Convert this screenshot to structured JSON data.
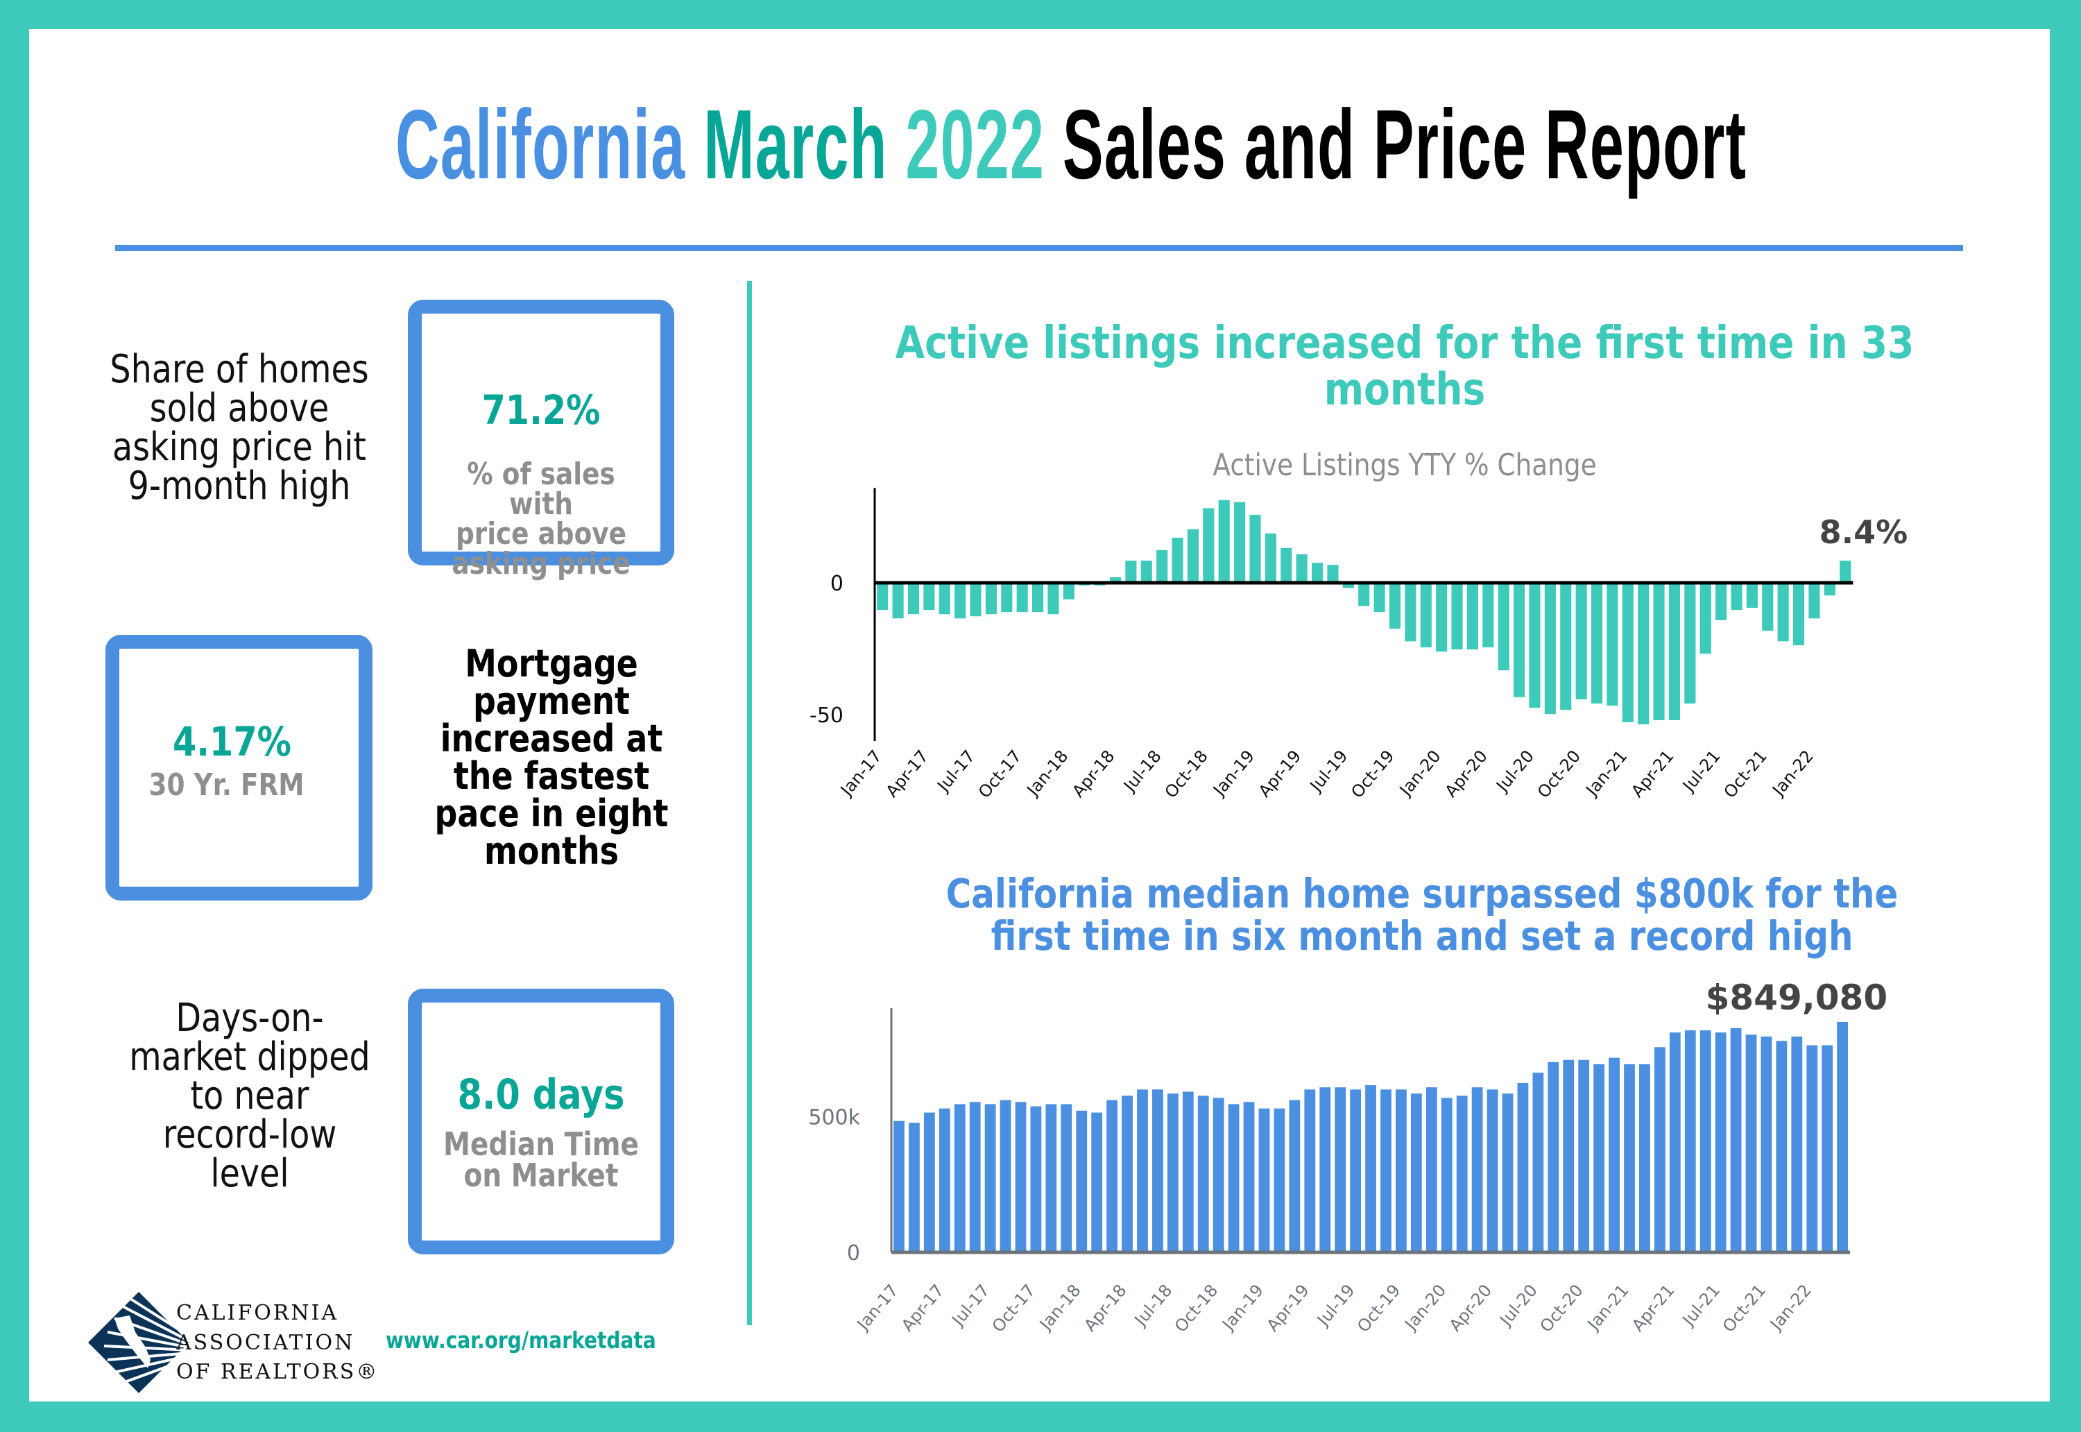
{
  "title": {
    "part1": "California",
    "part2": "March",
    "part3": "2022",
    "part4": "Sales and Price Report"
  },
  "colors": {
    "border": "#3ecabb",
    "blue": "#4a8fe0",
    "teal_dark": "#08a696",
    "teal_light": "#3ecabb",
    "gray_text": "#8e8e8e",
    "label_dark": "#444444"
  },
  "stats": [
    {
      "description": [
        "Share of homes",
        "sold above",
        "asking price hit",
        "9-month high"
      ],
      "value": "71.2%",
      "label": [
        "% of sales with",
        "price above",
        "asking price"
      ]
    },
    {
      "description": [
        "Mortgage",
        "payment",
        "increased at",
        "the fastest",
        "pace in eight",
        "months"
      ],
      "value": "4.17%",
      "label": [
        "30 Yr. FRM"
      ]
    },
    {
      "description": [
        "Days-on-",
        "market dipped",
        "to near",
        "record-low",
        "level"
      ],
      "value": "8.0 days",
      "label": [
        "Median Time",
        "on Market"
      ]
    }
  ],
  "footer": {
    "logo_lines": [
      "CALIFORNIA",
      "ASSOCIATION",
      "OF REALTORS®"
    ],
    "url": "www.car.org/marketdata"
  },
  "chart_data": [
    {
      "type": "bar",
      "title": "Active listings increased for the first time in 33 months",
      "title_lines": [
        "Active listings increased for the first time in 33",
        "months"
      ],
      "subtitle": "Active Listings YTY % Change",
      "xlabel": "",
      "ylabel": "",
      "ylim": [
        -60,
        36
      ],
      "yticks": [
        0,
        -50
      ],
      "ytick_labels": [
        "0",
        "-50"
      ],
      "grid": false,
      "tick_labels": [
        "Jan-17",
        "Apr-17",
        "Jul-17",
        "Oct-17",
        "Jan-18",
        "Apr-18",
        "Jul-18",
        "Oct-18",
        "Jan-19",
        "Apr-19",
        "Jul-19",
        "Oct-19",
        "Jan-20",
        "Apr-20",
        "Jul-20",
        "Oct-20",
        "Jan-21",
        "Apr-21",
        "Jul-21",
        "Oct-21",
        "Jan-22"
      ],
      "categories": [
        "Jan-17",
        "Feb-17",
        "Mar-17",
        "Apr-17",
        "May-17",
        "Jun-17",
        "Jul-17",
        "Aug-17",
        "Sep-17",
        "Oct-17",
        "Nov-17",
        "Dec-17",
        "Jan-18",
        "Feb-18",
        "Mar-18",
        "Apr-18",
        "May-18",
        "Jun-18",
        "Jul-18",
        "Aug-18",
        "Sep-18",
        "Oct-18",
        "Nov-18",
        "Dec-18",
        "Jan-19",
        "Feb-19",
        "Mar-19",
        "Apr-19",
        "May-19",
        "Jun-19",
        "Jul-19",
        "Aug-19",
        "Sep-19",
        "Oct-19",
        "Nov-19",
        "Dec-19",
        "Jan-20",
        "Feb-20",
        "Mar-20",
        "Apr-20",
        "May-20",
        "Jun-20",
        "Jul-20",
        "Aug-20",
        "Sep-20",
        "Oct-20",
        "Nov-20",
        "Dec-20",
        "Jan-21",
        "Feb-21",
        "Mar-21",
        "Apr-21",
        "May-21",
        "Jun-21",
        "Jul-21",
        "Aug-21",
        "Sep-21",
        "Oct-21",
        "Nov-21",
        "Dec-21",
        "Jan-22",
        "Feb-22",
        "Mar-22"
      ],
      "values": [
        -10.3,
        -13.5,
        -11.9,
        -10.3,
        -11.9,
        -13.5,
        -12.7,
        -11.9,
        -11.1,
        -11.1,
        -11.1,
        -11.9,
        -6.3,
        -1.0,
        -1.0,
        2.1,
        8.4,
        8.4,
        12.4,
        17.1,
        20.3,
        28.3,
        31.4,
        30.6,
        25.8,
        18.7,
        13.2,
        10.8,
        7.6,
        6.8,
        -2.0,
        -8.8,
        -11.1,
        -17.4,
        -22.2,
        -24.5,
        -26.1,
        -25.3,
        -25.3,
        -24.5,
        -33.2,
        -43.4,
        -47.4,
        -49.8,
        -48.2,
        -44.2,
        -45.8,
        -46.6,
        -52.9,
        -53.7,
        -52.1,
        -52.1,
        -45.8,
        -26.9,
        -14.2,
        -10.3,
        -9.5,
        -18.2,
        -22.2,
        -23.7,
        -13.5,
        -4.8,
        8.4
      ],
      "annotation": {
        "text": "8.4%",
        "target": "Mar-22"
      },
      "bar_color": "#3ecabb"
    },
    {
      "type": "bar",
      "title": "California median home surpassed $800k for the first time in six month and set a record high",
      "title_lines": [
        "California median home surpassed $800k for the",
        "first time in six month and set a record high"
      ],
      "xlabel": "",
      "ylabel": "",
      "ylim": [
        0,
        900000
      ],
      "yticks": [
        0,
        500000
      ],
      "ytick_labels": [
        "0",
        "500k"
      ],
      "grid": false,
      "tick_labels": [
        "Jan-17",
        "Apr-17",
        "Jul-17",
        "Oct-17",
        "Jan-18",
        "Apr-18",
        "Jul-18",
        "Oct-18",
        "Jan-19",
        "Apr-19",
        "Jul-19",
        "Oct-19",
        "Jan-20",
        "Apr-20",
        "Jul-20",
        "Oct-20",
        "Jan-21",
        "Apr-21",
        "Jul-21",
        "Oct-21",
        "Jan-22"
      ],
      "categories": [
        "Jan-17",
        "Feb-17",
        "Mar-17",
        "Apr-17",
        "May-17",
        "Jun-17",
        "Jul-17",
        "Aug-17",
        "Sep-17",
        "Oct-17",
        "Nov-17",
        "Dec-17",
        "Jan-18",
        "Feb-18",
        "Mar-18",
        "Apr-18",
        "May-18",
        "Jun-18",
        "Jul-18",
        "Aug-18",
        "Sep-18",
        "Oct-18",
        "Nov-18",
        "Dec-18",
        "Jan-19",
        "Feb-19",
        "Mar-19",
        "Apr-19",
        "May-19",
        "Jun-19",
        "Jul-19",
        "Aug-19",
        "Sep-19",
        "Oct-19",
        "Nov-19",
        "Dec-19",
        "Jan-20",
        "Feb-20",
        "Mar-20",
        "Apr-20",
        "May-20",
        "Jun-20",
        "Jul-20",
        "Aug-20",
        "Sep-20",
        "Oct-20",
        "Nov-20",
        "Dec-20",
        "Jan-21",
        "Feb-21",
        "Mar-21",
        "Apr-21",
        "May-21",
        "Jun-21",
        "Jul-21",
        "Aug-21",
        "Sep-21",
        "Oct-21",
        "Nov-21",
        "Dec-21",
        "Jan-22",
        "Feb-22",
        "Mar-22"
      ],
      "values": [
        484000,
        477000,
        515000,
        530000,
        546000,
        554000,
        546000,
        561000,
        554000,
        538000,
        546000,
        546000,
        522000,
        515000,
        561000,
        577000,
        600000,
        600000,
        585000,
        592000,
        577000,
        569000,
        546000,
        554000,
        530000,
        530000,
        561000,
        600000,
        608000,
        608000,
        600000,
        616000,
        600000,
        600000,
        585000,
        608000,
        569000,
        577000,
        608000,
        600000,
        585000,
        624000,
        662000,
        701000,
        709000,
        709000,
        693000,
        717000,
        693000,
        693000,
        756000,
        810000,
        818000,
        818000,
        810000,
        826000,
        802000,
        795000,
        779000,
        795000,
        763000,
        763000,
        849080
      ],
      "annotation": {
        "text": "$849,080",
        "target": "Mar-22"
      },
      "bar_color": "#4a8fe0"
    }
  ]
}
